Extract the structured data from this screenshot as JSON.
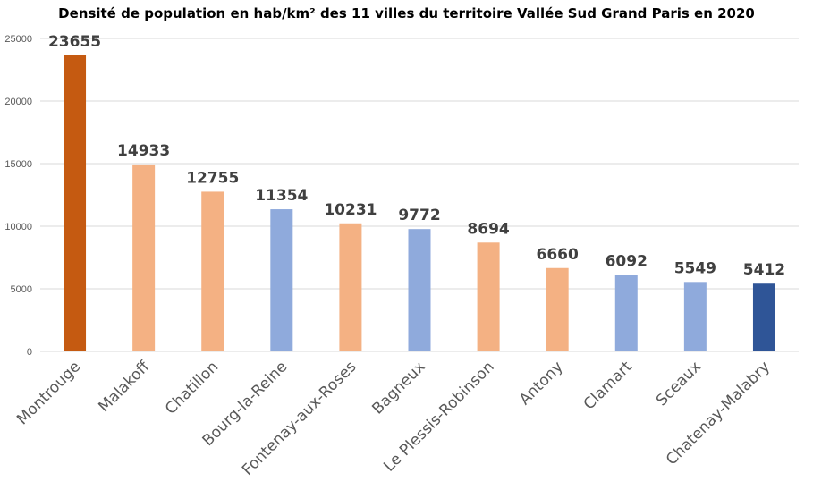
{
  "chart_data": {
    "type": "bar",
    "title": "Densité de population en hab/km² des 11 villes du territoire Vallée Sud Grand Paris en 2020",
    "categories": [
      "Montrouge",
      "Malakoff",
      "Chatillon",
      "Bourg-la-Reine",
      "Fontenay-aux-Roses",
      "Bagneux",
      "Le Plessis-Robinson",
      "Antony",
      "Clamart",
      "Sceaux",
      "Chatenay-Malabry"
    ],
    "values": [
      23655,
      14933,
      12755,
      11354,
      10231,
      9772,
      8694,
      6660,
      6092,
      5549,
      5412
    ],
    "bar_colors": [
      "#c55a11",
      "#f4b183",
      "#f4b183",
      "#8faadc",
      "#f4b183",
      "#8faadc",
      "#f4b183",
      "#f4b183",
      "#8faadc",
      "#8faadc",
      "#2f5597"
    ],
    "ylim": [
      0,
      25000
    ],
    "yticks": [
      0,
      5000,
      10000,
      15000,
      20000,
      25000
    ],
    "grid": true,
    "gridline_color": "#d9d9d9",
    "data_labels": true
  }
}
